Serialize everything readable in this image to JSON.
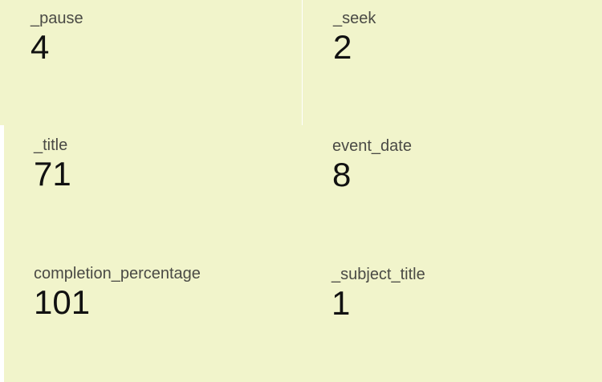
{
  "metrics": {
    "pause": {
      "label": "_pause",
      "value": "4"
    },
    "seek": {
      "label": "_seek",
      "value": "2"
    },
    "title": {
      "label": "_title",
      "value": "71"
    },
    "event_date": {
      "label": "event_date",
      "value": "8"
    },
    "completion_percentage": {
      "label": "completion_percentage",
      "value": "101"
    },
    "subject_title": {
      "label": "_subject_title",
      "value": "1"
    }
  },
  "colors": {
    "card_background": "#f1f4cb",
    "label_text": "#4a4a45",
    "value_text": "#111111",
    "gap": "#ffffff"
  }
}
